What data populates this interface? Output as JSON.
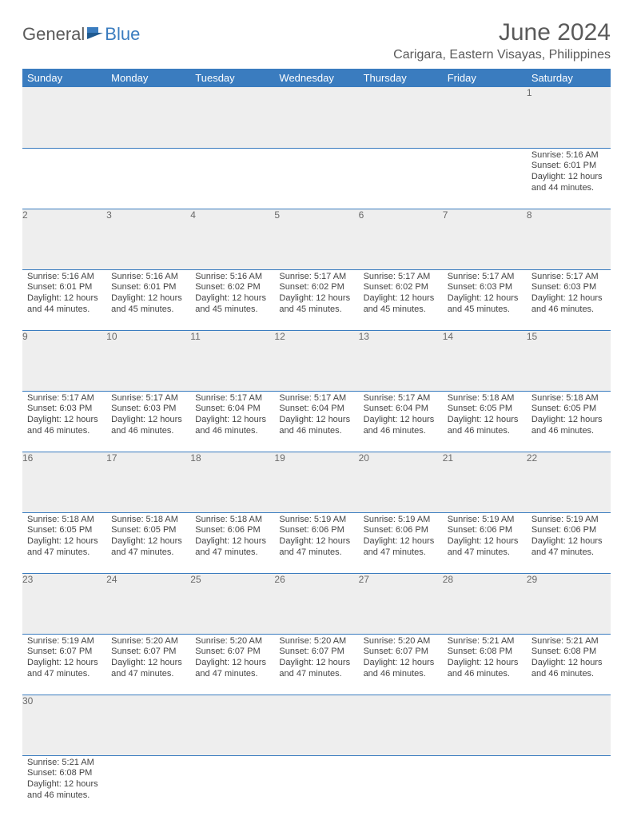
{
  "brand": {
    "part1": "General",
    "part2": "Blue"
  },
  "title": "June 2024",
  "location": "Carigara, Eastern Visayas, Philippines",
  "colors": {
    "header_bg": "#3a7cbf",
    "header_text": "#ffffff",
    "daynum_bg": "#eeeeee",
    "daynum_text": "#6a6a6a",
    "row_divider": "#3a7cbf",
    "body_text": "#444444",
    "title_text": "#5a5a5a",
    "background": "#ffffff"
  },
  "typography": {
    "base_font": "Arial",
    "title_size_pt": 22,
    "cell_size_pt": 8
  },
  "weekdays": [
    "Sunday",
    "Monday",
    "Tuesday",
    "Wednesday",
    "Thursday",
    "Friday",
    "Saturday"
  ],
  "weeks": [
    [
      null,
      null,
      null,
      null,
      null,
      null,
      {
        "n": "1",
        "sunrise": "Sunrise: 5:16 AM",
        "sunset": "Sunset: 6:01 PM",
        "day1": "Daylight: 12 hours",
        "day2": "and 44 minutes."
      }
    ],
    [
      {
        "n": "2",
        "sunrise": "Sunrise: 5:16 AM",
        "sunset": "Sunset: 6:01 PM",
        "day1": "Daylight: 12 hours",
        "day2": "and 44 minutes."
      },
      {
        "n": "3",
        "sunrise": "Sunrise: 5:16 AM",
        "sunset": "Sunset: 6:01 PM",
        "day1": "Daylight: 12 hours",
        "day2": "and 45 minutes."
      },
      {
        "n": "4",
        "sunrise": "Sunrise: 5:16 AM",
        "sunset": "Sunset: 6:02 PM",
        "day1": "Daylight: 12 hours",
        "day2": "and 45 minutes."
      },
      {
        "n": "5",
        "sunrise": "Sunrise: 5:17 AM",
        "sunset": "Sunset: 6:02 PM",
        "day1": "Daylight: 12 hours",
        "day2": "and 45 minutes."
      },
      {
        "n": "6",
        "sunrise": "Sunrise: 5:17 AM",
        "sunset": "Sunset: 6:02 PM",
        "day1": "Daylight: 12 hours",
        "day2": "and 45 minutes."
      },
      {
        "n": "7",
        "sunrise": "Sunrise: 5:17 AM",
        "sunset": "Sunset: 6:03 PM",
        "day1": "Daylight: 12 hours",
        "day2": "and 45 minutes."
      },
      {
        "n": "8",
        "sunrise": "Sunrise: 5:17 AM",
        "sunset": "Sunset: 6:03 PM",
        "day1": "Daylight: 12 hours",
        "day2": "and 46 minutes."
      }
    ],
    [
      {
        "n": "9",
        "sunrise": "Sunrise: 5:17 AM",
        "sunset": "Sunset: 6:03 PM",
        "day1": "Daylight: 12 hours",
        "day2": "and 46 minutes."
      },
      {
        "n": "10",
        "sunrise": "Sunrise: 5:17 AM",
        "sunset": "Sunset: 6:03 PM",
        "day1": "Daylight: 12 hours",
        "day2": "and 46 minutes."
      },
      {
        "n": "11",
        "sunrise": "Sunrise: 5:17 AM",
        "sunset": "Sunset: 6:04 PM",
        "day1": "Daylight: 12 hours",
        "day2": "and 46 minutes."
      },
      {
        "n": "12",
        "sunrise": "Sunrise: 5:17 AM",
        "sunset": "Sunset: 6:04 PM",
        "day1": "Daylight: 12 hours",
        "day2": "and 46 minutes."
      },
      {
        "n": "13",
        "sunrise": "Sunrise: 5:17 AM",
        "sunset": "Sunset: 6:04 PM",
        "day1": "Daylight: 12 hours",
        "day2": "and 46 minutes."
      },
      {
        "n": "14",
        "sunrise": "Sunrise: 5:18 AM",
        "sunset": "Sunset: 6:05 PM",
        "day1": "Daylight: 12 hours",
        "day2": "and 46 minutes."
      },
      {
        "n": "15",
        "sunrise": "Sunrise: 5:18 AM",
        "sunset": "Sunset: 6:05 PM",
        "day1": "Daylight: 12 hours",
        "day2": "and 46 minutes."
      }
    ],
    [
      {
        "n": "16",
        "sunrise": "Sunrise: 5:18 AM",
        "sunset": "Sunset: 6:05 PM",
        "day1": "Daylight: 12 hours",
        "day2": "and 47 minutes."
      },
      {
        "n": "17",
        "sunrise": "Sunrise: 5:18 AM",
        "sunset": "Sunset: 6:05 PM",
        "day1": "Daylight: 12 hours",
        "day2": "and 47 minutes."
      },
      {
        "n": "18",
        "sunrise": "Sunrise: 5:18 AM",
        "sunset": "Sunset: 6:06 PM",
        "day1": "Daylight: 12 hours",
        "day2": "and 47 minutes."
      },
      {
        "n": "19",
        "sunrise": "Sunrise: 5:19 AM",
        "sunset": "Sunset: 6:06 PM",
        "day1": "Daylight: 12 hours",
        "day2": "and 47 minutes."
      },
      {
        "n": "20",
        "sunrise": "Sunrise: 5:19 AM",
        "sunset": "Sunset: 6:06 PM",
        "day1": "Daylight: 12 hours",
        "day2": "and 47 minutes."
      },
      {
        "n": "21",
        "sunrise": "Sunrise: 5:19 AM",
        "sunset": "Sunset: 6:06 PM",
        "day1": "Daylight: 12 hours",
        "day2": "and 47 minutes."
      },
      {
        "n": "22",
        "sunrise": "Sunrise: 5:19 AM",
        "sunset": "Sunset: 6:06 PM",
        "day1": "Daylight: 12 hours",
        "day2": "and 47 minutes."
      }
    ],
    [
      {
        "n": "23",
        "sunrise": "Sunrise: 5:19 AM",
        "sunset": "Sunset: 6:07 PM",
        "day1": "Daylight: 12 hours",
        "day2": "and 47 minutes."
      },
      {
        "n": "24",
        "sunrise": "Sunrise: 5:20 AM",
        "sunset": "Sunset: 6:07 PM",
        "day1": "Daylight: 12 hours",
        "day2": "and 47 minutes."
      },
      {
        "n": "25",
        "sunrise": "Sunrise: 5:20 AM",
        "sunset": "Sunset: 6:07 PM",
        "day1": "Daylight: 12 hours",
        "day2": "and 47 minutes."
      },
      {
        "n": "26",
        "sunrise": "Sunrise: 5:20 AM",
        "sunset": "Sunset: 6:07 PM",
        "day1": "Daylight: 12 hours",
        "day2": "and 47 minutes."
      },
      {
        "n": "27",
        "sunrise": "Sunrise: 5:20 AM",
        "sunset": "Sunset: 6:07 PM",
        "day1": "Daylight: 12 hours",
        "day2": "and 46 minutes."
      },
      {
        "n": "28",
        "sunrise": "Sunrise: 5:21 AM",
        "sunset": "Sunset: 6:08 PM",
        "day1": "Daylight: 12 hours",
        "day2": "and 46 minutes."
      },
      {
        "n": "29",
        "sunrise": "Sunrise: 5:21 AM",
        "sunset": "Sunset: 6:08 PM",
        "day1": "Daylight: 12 hours",
        "day2": "and 46 minutes."
      }
    ],
    [
      {
        "n": "30",
        "sunrise": "Sunrise: 5:21 AM",
        "sunset": "Sunset: 6:08 PM",
        "day1": "Daylight: 12 hours",
        "day2": "and 46 minutes."
      },
      null,
      null,
      null,
      null,
      null,
      null
    ]
  ]
}
